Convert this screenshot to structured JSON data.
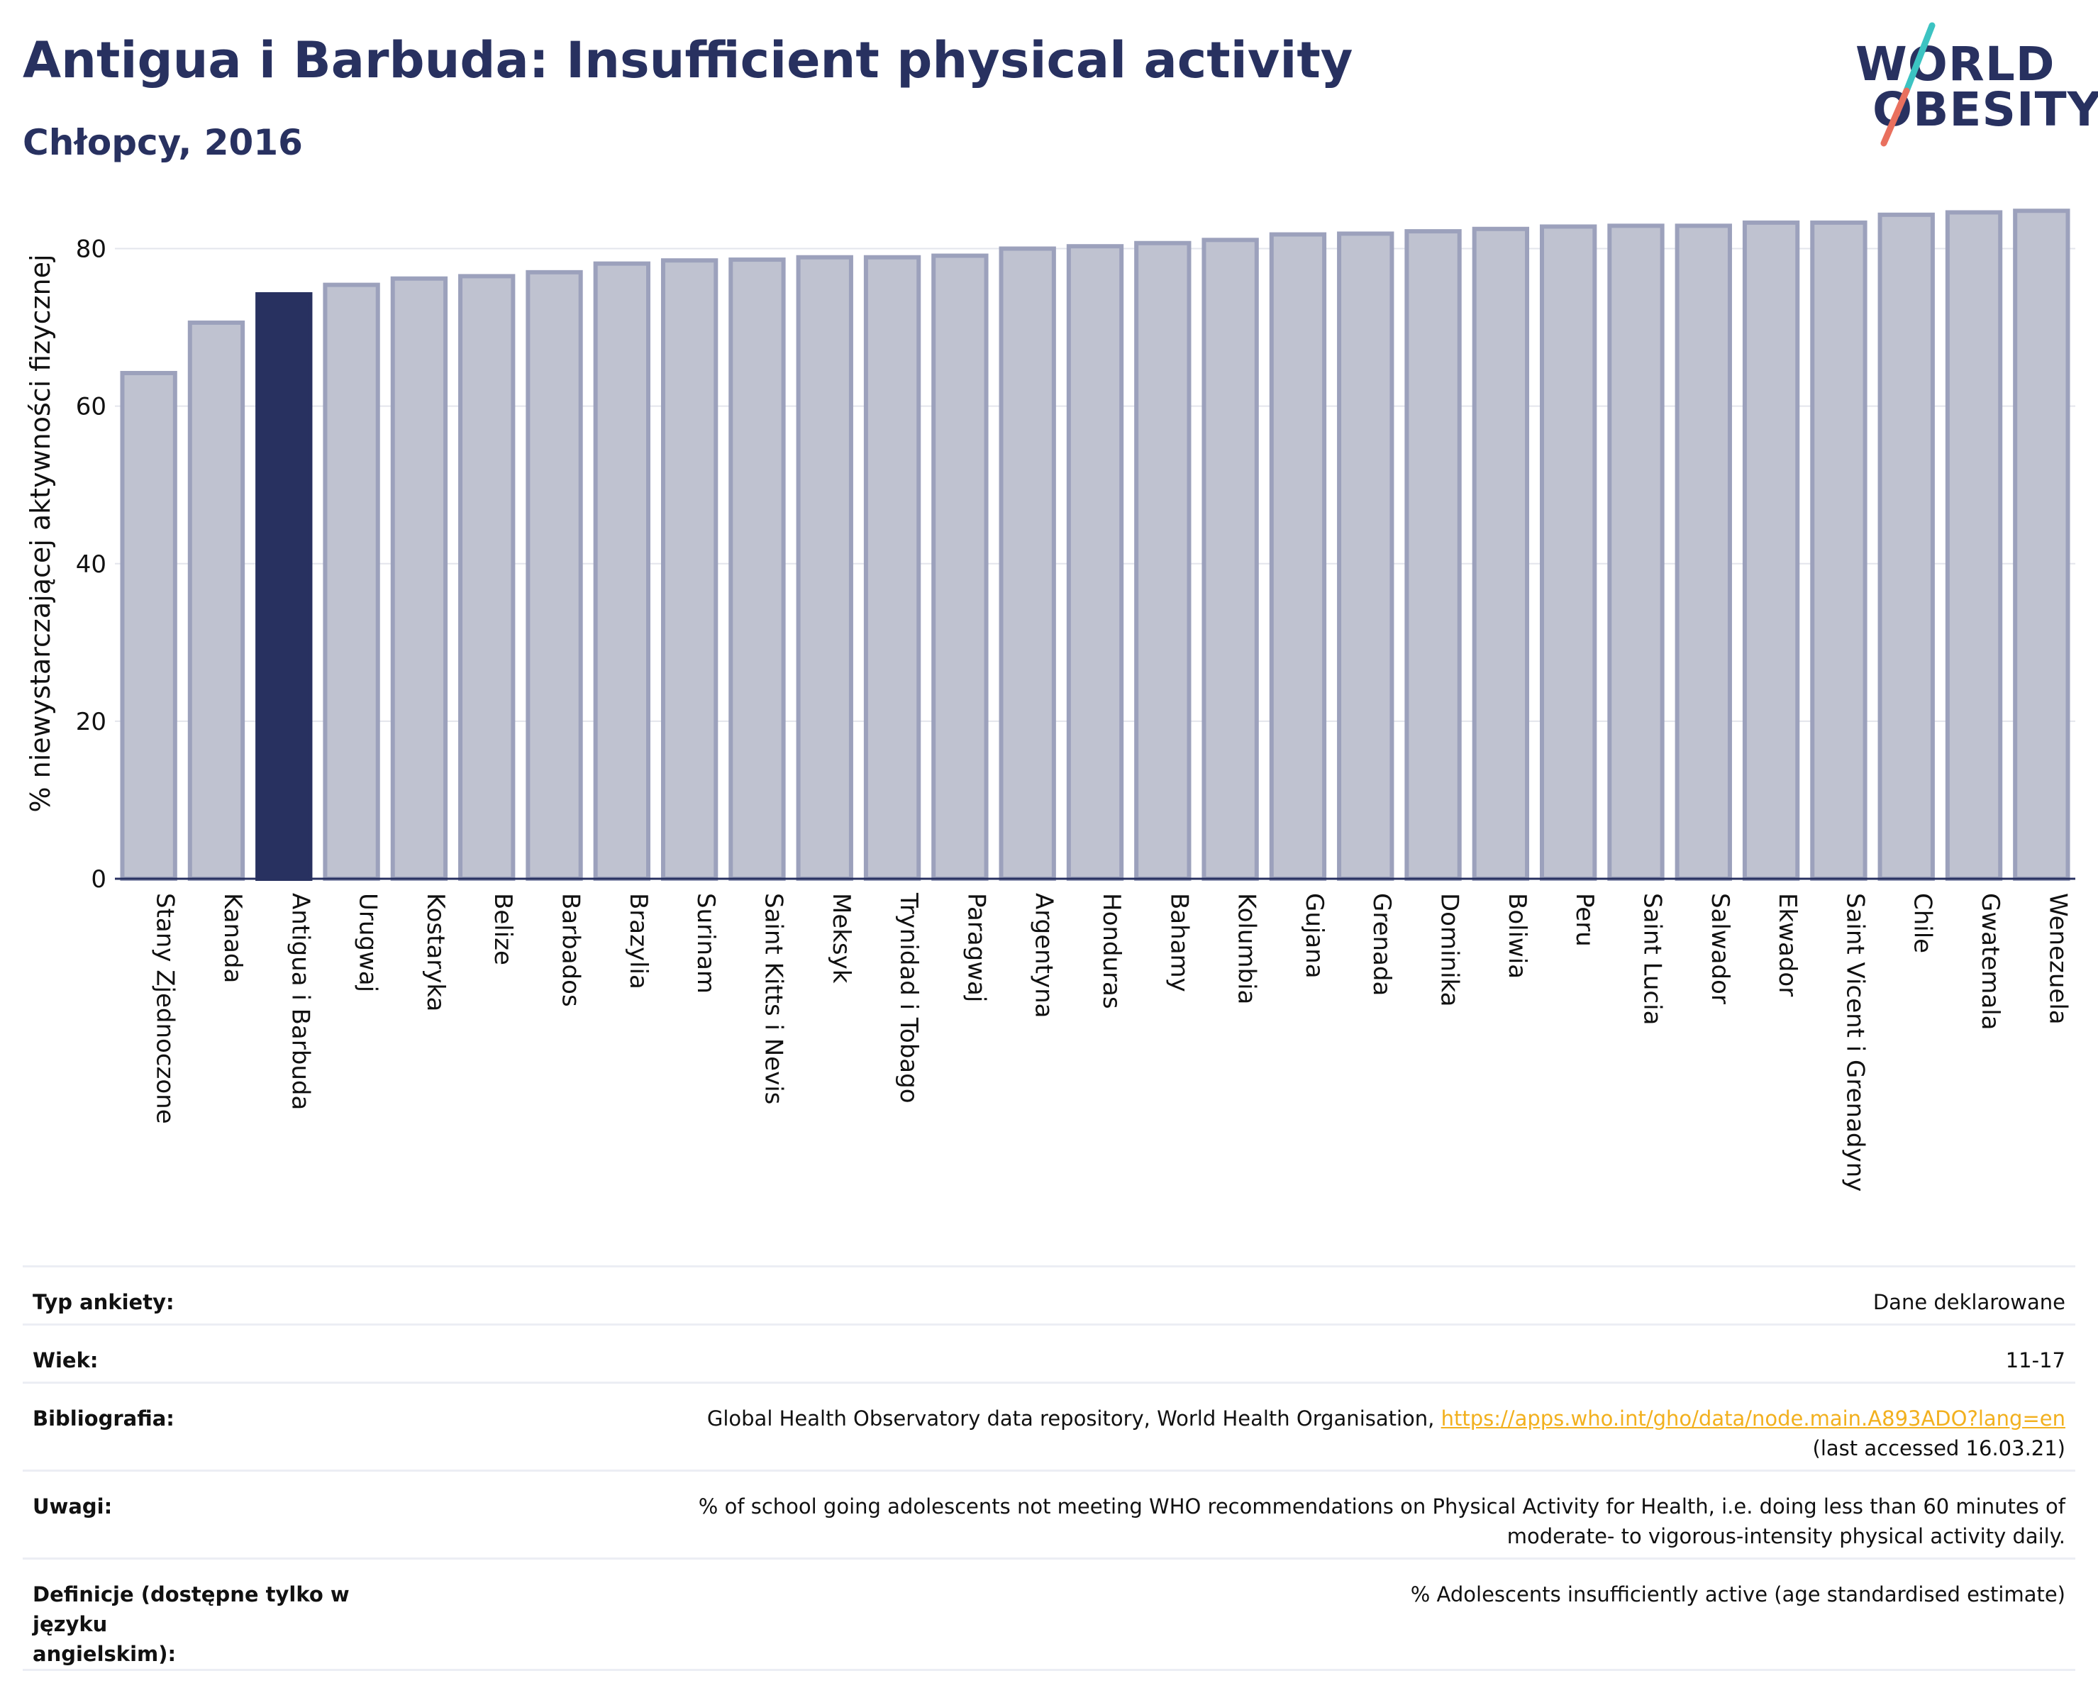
{
  "header": {
    "title": "Antigua i Barbuda: Insufficient physical activity",
    "subtitle": "Chłopcy, 2016"
  },
  "logo": {
    "line1": "WORLD",
    "line2": "OBESITY",
    "slash_colors": [
      "#3cc3c2",
      "#e9705e"
    ]
  },
  "colors": {
    "highlight": "#283160",
    "bar_fill": "#bfc2d0",
    "bar_stroke": "#9ca1bc",
    "grid": "#e3e5ec",
    "axis": "#283160",
    "link": "#f2b01e"
  },
  "chart_data": {
    "type": "bar",
    "title": "",
    "xlabel": "",
    "ylabel": "% niewystarczającej aktywności fizycznej",
    "ylim": [
      0,
      85
    ],
    "yticks": [
      0,
      20,
      40,
      60,
      80
    ],
    "grid": true,
    "highlight": "Antigua i Barbuda",
    "categories": [
      "Stany Zjednoczone",
      "Kanada",
      "Antigua i Barbuda",
      "Urugwaj",
      "Kostaryka",
      "Belize",
      "Barbados",
      "Brazylia",
      "Surinam",
      "Saint Kitts i Nevis",
      "Meksyk",
      "Trynidad i Tobago",
      "Paragwaj",
      "Argentyna",
      "Honduras",
      "Bahamy",
      "Kolumbia",
      "Gujana",
      "Grenada",
      "Dominika",
      "Boliwia",
      "Peru",
      "Saint Lucia",
      "Salwador",
      "Ekwador",
      "Saint Vicent i Grenadyny",
      "Chile",
      "Gwatemala",
      "Wenezuela"
    ],
    "values": [
      64.2,
      70.6,
      74.2,
      75.4,
      76.2,
      76.5,
      77.0,
      78.1,
      78.5,
      78.6,
      78.9,
      78.9,
      79.1,
      80.0,
      80.3,
      80.7,
      81.1,
      81.8,
      81.9,
      82.2,
      82.5,
      82.8,
      82.9,
      82.9,
      83.3,
      83.3,
      84.3,
      84.6,
      84.8
    ]
  },
  "info": {
    "rows": [
      {
        "label": "Typ ankiety:",
        "value": "Dane deklarowane"
      },
      {
        "label": "Wiek:",
        "value": "11-17"
      },
      {
        "label": "Bibliografia:",
        "value": "Global Health Observatory data repository, World Health Organisation,",
        "link": "https://apps.who.int/gho/data/node.main.A893ADO?lang=en",
        "note": "(last accessed 16.03.21)"
      },
      {
        "label": "Uwagi:",
        "value": "% of school going adolescents not meeting WHO recommendations on Physical Activity for Health, i.e. doing less than 60 minutes of",
        "value2": "moderate- to vigorous-intensity physical activity daily."
      },
      {
        "label": "Definicje (dostępne tylko w języku",
        "label2": "angielskim):",
        "value": "% Adolescents insufficiently active (age standardised estimate)"
      }
    ]
  }
}
